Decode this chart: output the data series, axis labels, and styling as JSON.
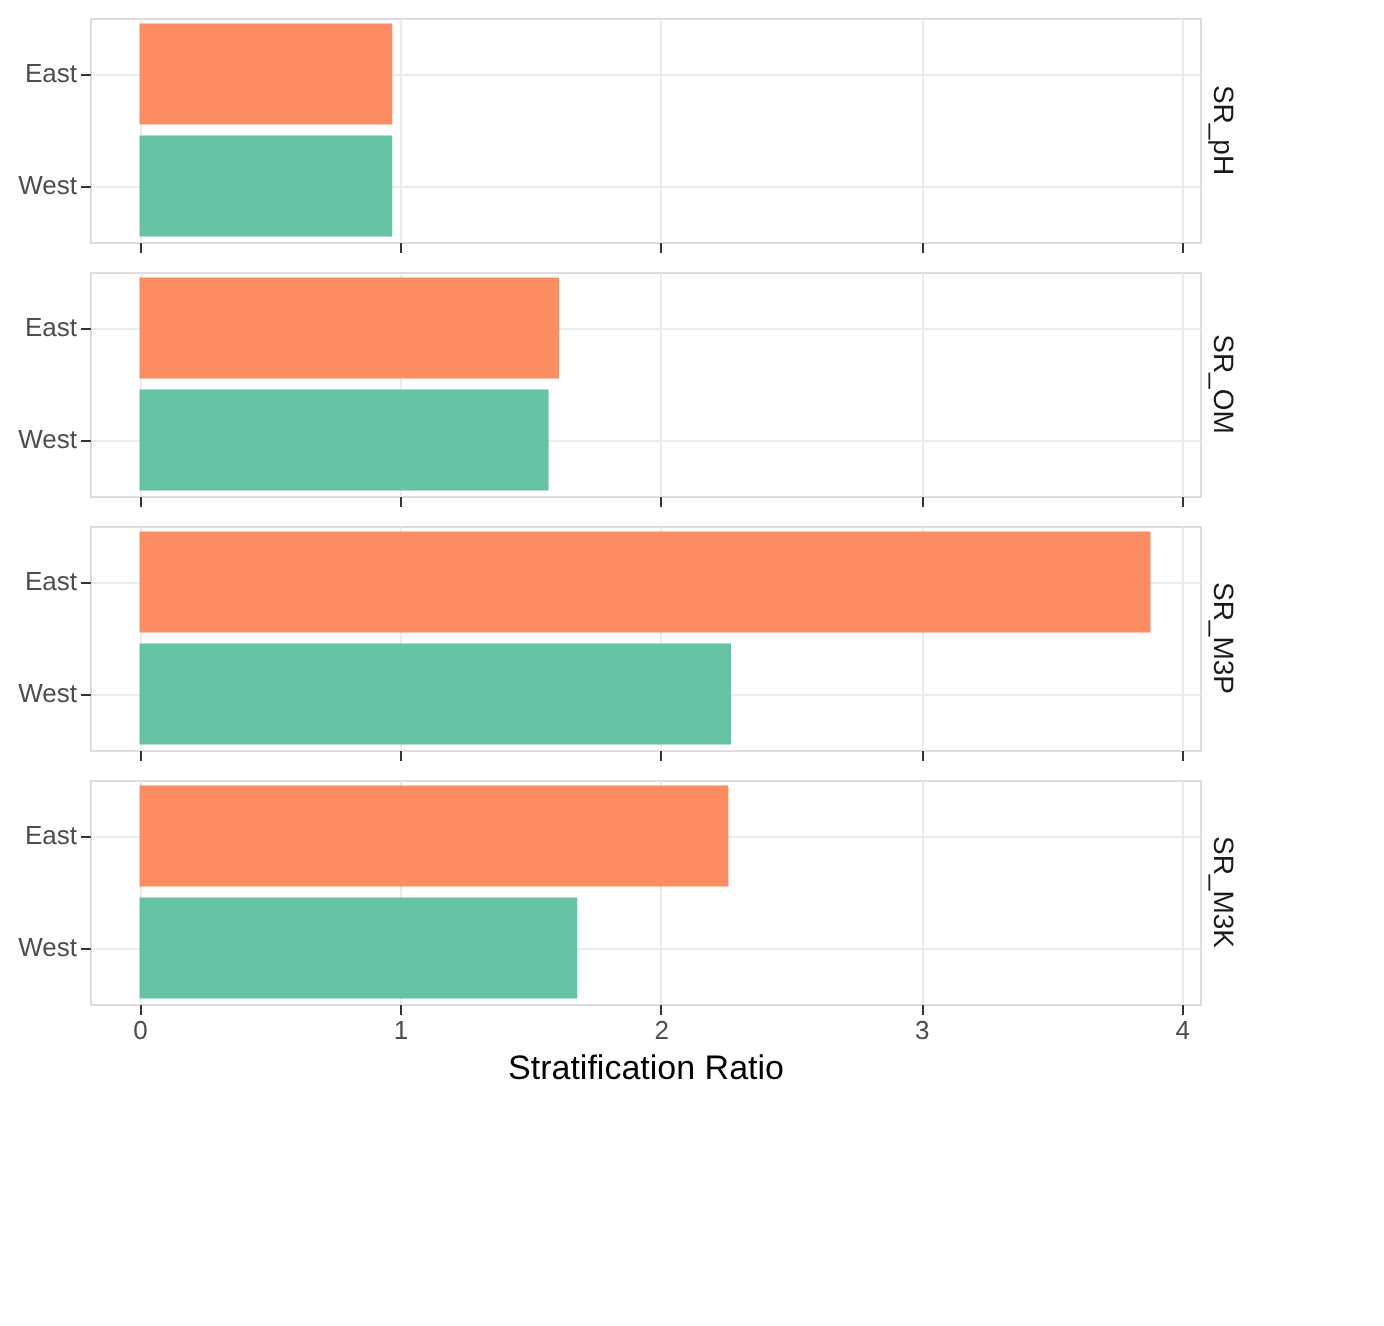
{
  "chart_data": [
    {
      "type": "bar",
      "orientation": "horizontal",
      "title": "SR_pH",
      "categories": [
        "East",
        "West"
      ],
      "values": [
        0.97,
        0.97
      ],
      "colors": [
        "#fc8d62",
        "#66c2a5"
      ],
      "xlim": [
        -0.19,
        4.07
      ],
      "xticks": [
        0,
        1,
        2,
        3,
        4
      ],
      "grid": true,
      "tick_labels": "y"
    },
    {
      "type": "bar",
      "orientation": "horizontal",
      "title": "SR_OM",
      "categories": [
        "East",
        "West"
      ],
      "values": [
        1.61,
        1.57
      ],
      "colors": [
        "#fc8d62",
        "#66c2a5"
      ],
      "xlim": [
        -0.19,
        4.07
      ],
      "xticks": [
        0,
        1,
        2,
        3,
        4
      ],
      "grid": true,
      "tick_labels": "y"
    },
    {
      "type": "bar",
      "orientation": "horizontal",
      "title": "SR_M3P",
      "categories": [
        "East",
        "West"
      ],
      "values": [
        3.88,
        2.27
      ],
      "colors": [
        "#fc8d62",
        "#66c2a5"
      ],
      "xlim": [
        -0.19,
        4.07
      ],
      "xticks": [
        0,
        1,
        2,
        3,
        4
      ],
      "grid": true,
      "tick_labels": "y"
    },
    {
      "type": "bar",
      "orientation": "horizontal",
      "title": "SR_M3K",
      "xlabel": "Stratification Ratio",
      "categories": [
        "East",
        "West"
      ],
      "values": [
        2.26,
        1.68
      ],
      "colors": [
        "#fc8d62",
        "#66c2a5"
      ],
      "xlim": [
        -0.19,
        4.07
      ],
      "xticks": [
        0,
        1,
        2,
        3,
        4
      ],
      "grid": true
    }
  ]
}
